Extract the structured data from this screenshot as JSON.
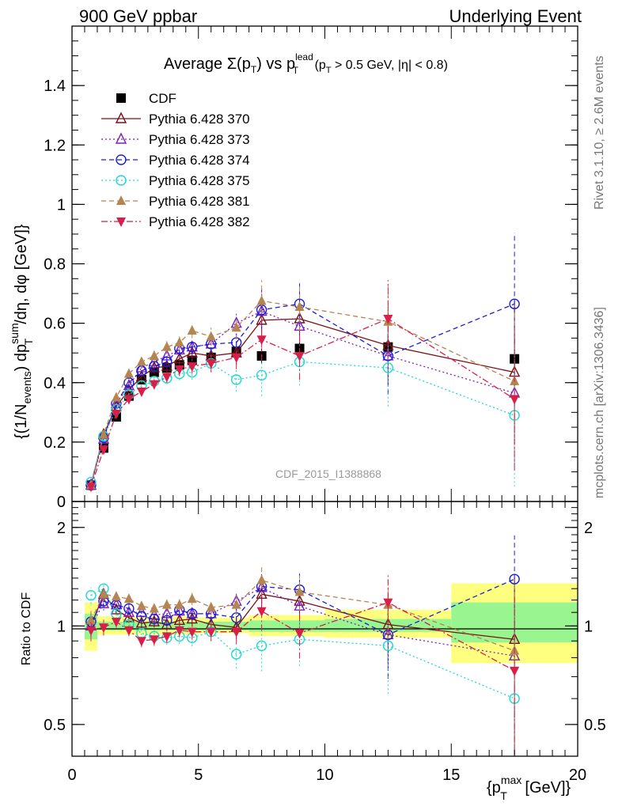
{
  "header": {
    "left": "900 GeV ppbar",
    "right": "Underlying Event"
  },
  "side_labels": {
    "rivet": "Rivet 3.1.10, ≥ 2.6M events",
    "mcplots": "mcplots.cern.ch [arXiv:1306.3436]"
  },
  "watermark": "CDF_2015_I1388868",
  "chart_data": [
    {
      "type": "scatter",
      "title": "Average Σ(p_T) vs p_T^lead (p_T > 0.5 GeV, |η| < 0.8)",
      "title_parts": {
        "t1": "Average ",
        "sigma": "Σ(p",
        "sub_T": "T",
        "t2": ") vs p",
        "sup_lead": "lead",
        "sub_T2": "T",
        "t3": " (p",
        "sub_T3": "T",
        "t4": " > 0.5 GeV, |η| < 0.8)"
      },
      "ylabel": "{(1/N_events) dp_T^sum/dη, dφ [GeV]}",
      "ylabel_parts": {
        "a": "{(1/N",
        "sub_events": "events",
        "b": ") dp",
        "sup_sum": "sum",
        "sub_T": "T",
        "c": "/dη, dφ [GeV]}"
      },
      "xlim": [
        0,
        20
      ],
      "ylim": [
        0,
        1.6
      ],
      "yticks": [
        0,
        0.2,
        0.4,
        0.6,
        0.8,
        1,
        1.2,
        1.4
      ],
      "ytick_labels": [
        "0",
        "0.2",
        "0.4",
        "0.6",
        "0.8",
        "1",
        "1.2",
        "1.4"
      ],
      "legend_position": "top-left",
      "x": [
        0.75,
        1.25,
        1.75,
        2.25,
        2.75,
        3.25,
        3.75,
        4.25,
        4.75,
        5.5,
        6.5,
        7.5,
        9.0,
        12.5,
        17.5
      ],
      "series": [
        {
          "name": "CDF",
          "color": "#000000",
          "marker": "square-filled",
          "line": "none",
          "values": [
            0.055,
            0.18,
            0.285,
            0.355,
            0.41,
            0.435,
            0.45,
            0.46,
            0.475,
            0.485,
            0.505,
            0.49,
            0.515,
            0.52,
            0.48
          ]
        },
        {
          "name": "Pythia 6.428 370",
          "color": "#7b1016",
          "marker": "triangle-open",
          "line": "solid",
          "values": [
            0.055,
            0.225,
            0.32,
            0.375,
            0.42,
            0.45,
            0.455,
            0.48,
            0.5,
            0.49,
            0.5,
            0.61,
            0.615,
            0.525,
            0.435
          ]
        },
        {
          "name": "Pythia 6.428 373",
          "color": "#7c1fc2",
          "marker": "triangle-open",
          "line": "dotted",
          "values": [
            0.055,
            0.21,
            0.33,
            0.39,
            0.45,
            0.47,
            0.49,
            0.51,
            0.52,
            0.53,
            0.6,
            0.64,
            0.59,
            0.49,
            0.365
          ]
        },
        {
          "name": "Pythia 6.428 374",
          "color": "#1c1cd6",
          "marker": "circle-open",
          "line": "dashed",
          "values": [
            0.055,
            0.215,
            0.33,
            0.4,
            0.44,
            0.455,
            0.47,
            0.515,
            0.52,
            0.53,
            0.535,
            0.645,
            0.665,
            0.49,
            0.665
          ]
        },
        {
          "name": "Pythia 6.428 375",
          "color": "#1dd9cf",
          "marker": "circle-open",
          "line": "dotted",
          "values": [
            0.065,
            0.22,
            0.31,
            0.36,
            0.39,
            0.405,
            0.415,
            0.43,
            0.435,
            0.465,
            0.41,
            0.425,
            0.47,
            0.45,
            0.29
          ]
        },
        {
          "name": "Pythia 6.428 381",
          "color": "#b58551",
          "marker": "triangle-filled",
          "line": "dashed",
          "values": [
            0.055,
            0.225,
            0.35,
            0.43,
            0.47,
            0.49,
            0.52,
            0.535,
            0.575,
            0.555,
            0.585,
            0.675,
            0.655,
            0.605,
            0.405
          ]
        },
        {
          "name": "Pythia 6.428 382",
          "color": "#d81f4a",
          "marker": "triangledown-filled",
          "line": "dashdot",
          "values": [
            0.05,
            0.175,
            0.295,
            0.345,
            0.37,
            0.395,
            0.42,
            0.445,
            0.455,
            0.465,
            0.485,
            0.545,
            0.49,
            0.615,
            0.345
          ]
        }
      ],
      "error_bars": {
        "note": "symmetric statistical errors in data units, per point",
        "CDF": [
          0.005,
          0.008,
          0.01,
          0.01,
          0.012,
          0.012,
          0.012,
          0.014,
          0.015,
          0.016,
          0.02,
          0.025,
          0.03,
          0.045,
          0.07
        ],
        "MC": [
          0.004,
          0.01,
          0.012,
          0.014,
          0.016,
          0.018,
          0.02,
          0.022,
          0.025,
          0.03,
          0.04,
          0.07,
          0.08,
          0.13,
          0.24
        ]
      }
    },
    {
      "type": "scatter",
      "ylabel": "Ratio to CDF",
      "xlabel": "{p_T^max [GeV]}",
      "xlabel_parts": {
        "a": "{p",
        "sup_max": "max",
        "sub_T": "T",
        "b": " [GeV]}"
      },
      "xlim": [
        0,
        20
      ],
      "ylim": [
        0.4,
        2.4
      ],
      "log_y": true,
      "yticks": [
        0.5,
        1,
        2
      ],
      "ytick_labels": [
        "0.5",
        "1",
        "2"
      ],
      "xticks": [
        0,
        5,
        10,
        15,
        20
      ],
      "xtick_labels": [
        "0",
        "5",
        "10",
        "15",
        "20"
      ],
      "uncertainty_bands": [
        {
          "x0": 0.5,
          "x1": 1.0,
          "yellow": [
            0.84,
            1.18
          ],
          "green": [
            0.91,
            1.09
          ]
        },
        {
          "x0": 1.0,
          "x1": 5.0,
          "yellow": [
            0.94,
            1.07
          ],
          "green": [
            0.97,
            1.03
          ]
        },
        {
          "x0": 5.0,
          "x1": 7.0,
          "yellow": [
            0.95,
            1.06
          ],
          "green": [
            0.97,
            1.03
          ]
        },
        {
          "x0": 7.0,
          "x1": 10.0,
          "yellow": [
            0.93,
            1.08
          ],
          "green": [
            0.96,
            1.04
          ]
        },
        {
          "x0": 10.0,
          "x1": 15.0,
          "yellow": [
            0.92,
            1.12
          ],
          "green": [
            0.96,
            1.05
          ]
        },
        {
          "x0": 15.0,
          "x1": 20.0,
          "yellow": [
            0.77,
            1.35
          ],
          "green": [
            0.89,
            1.18
          ]
        }
      ],
      "x": [
        0.75,
        1.25,
        1.75,
        2.25,
        2.75,
        3.25,
        3.75,
        4.25,
        4.75,
        5.5,
        6.5,
        7.5,
        9.0,
        12.5,
        17.5
      ],
      "series": [
        {
          "name": "Pythia 6.428 370",
          "values": [
            1.0,
            1.25,
            1.12,
            1.06,
            1.02,
            1.03,
            1.01,
            1.04,
            1.05,
            1.01,
            0.99,
            1.25,
            1.19,
            1.01,
            0.91
          ]
        },
        {
          "name": "Pythia 6.428 373",
          "values": [
            1.0,
            1.17,
            1.16,
            1.1,
            1.1,
            1.08,
            1.09,
            1.11,
            1.09,
            1.09,
            1.19,
            1.31,
            1.15,
            0.94,
            0.81
          ]
        },
        {
          "name": "Pythia 6.428 374",
          "values": [
            1.03,
            1.19,
            1.16,
            1.13,
            1.07,
            1.05,
            1.04,
            1.12,
            1.09,
            1.09,
            1.06,
            1.32,
            1.29,
            0.94,
            1.39
          ]
        },
        {
          "name": "Pythia 6.428 375",
          "values": [
            1.24,
            1.3,
            1.09,
            1.01,
            0.95,
            0.93,
            0.92,
            0.93,
            0.92,
            0.96,
            0.82,
            0.87,
            0.91,
            0.87,
            0.6
          ]
        },
        {
          "name": "Pythia 6.428 381",
          "values": [
            1.04,
            1.25,
            1.23,
            1.21,
            1.15,
            1.13,
            1.16,
            1.16,
            1.21,
            1.14,
            1.16,
            1.38,
            1.27,
            1.16,
            0.84
          ]
        },
        {
          "name": "Pythia 6.428 382",
          "values": [
            0.97,
            0.99,
            1.03,
            0.97,
            0.9,
            0.91,
            0.93,
            0.97,
            0.96,
            0.96,
            0.96,
            1.11,
            0.95,
            1.18,
            0.73
          ]
        }
      ]
    }
  ]
}
